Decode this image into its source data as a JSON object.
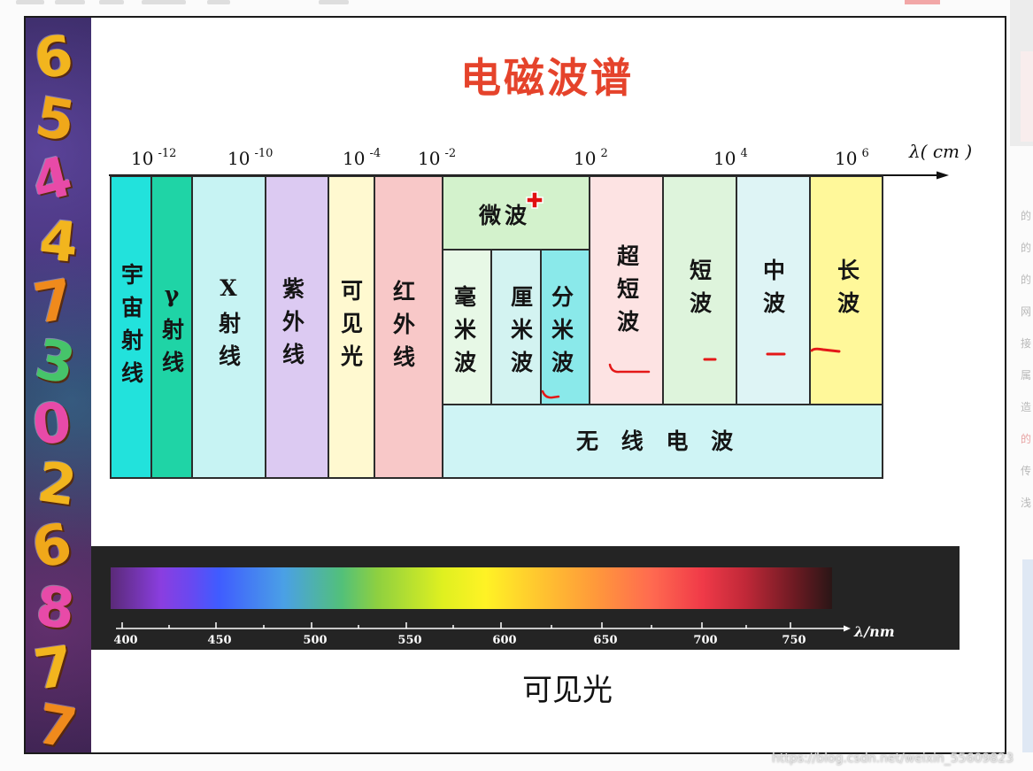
{
  "title": "电磁波谱",
  "colors": {
    "title": "#e5432b",
    "annotation": "#e41818",
    "cursor": "#e01010",
    "visible_bar": "#242424"
  },
  "axis": {
    "ticks": [
      {
        "base": "10",
        "exp": "-12"
      },
      {
        "base": "10",
        "exp": "-10"
      },
      {
        "base": "10",
        "exp": "-4"
      },
      {
        "base": "10",
        "exp": "-2"
      },
      {
        "base": "10",
        "exp": "2"
      },
      {
        "base": "10",
        "exp": "4"
      },
      {
        "base": "10",
        "exp": "6"
      }
    ],
    "unit_label": "λ( cm )"
  },
  "bands": [
    {
      "label": "宇宙射线",
      "color": "#22e2dc"
    },
    {
      "label": "γ射线",
      "color": "#1fd4a6"
    },
    {
      "label": "X射线",
      "color": "#c7f3f3"
    },
    {
      "label": "紫外线",
      "color": "#dccaf2"
    },
    {
      "label": "可见光",
      "color": "#fff9d0"
    },
    {
      "label": "红外线",
      "color": "#f8c8c8"
    }
  ],
  "microwave": {
    "label": "微波",
    "color": "#d3f2cc",
    "sub": [
      {
        "label": "毫米波",
        "color": "#e7f8e6"
      },
      {
        "label": "厘米波",
        "color": "#d3f3f1"
      },
      {
        "label": "分米波",
        "color": "#8ae9ea"
      }
    ]
  },
  "radio_bands": [
    {
      "label": "超短波",
      "color": "#fde3e3"
    },
    {
      "label": "短波",
      "color": "#def4dc"
    },
    {
      "label": "中波",
      "color": "#def4f5"
    },
    {
      "label": "长波",
      "color": "#fff89a"
    }
  ],
  "radio": {
    "label": "无 线 电 波",
    "color": "#cff4f5"
  },
  "visible_light": {
    "tick_labels": [
      "400",
      "450",
      "500",
      "550",
      "600",
      "650",
      "700",
      "750"
    ],
    "unit_label": "λ/nm",
    "caption": "可见光"
  },
  "decor_digits": [
    "6",
    "5",
    "4",
    "4",
    "7",
    "3",
    "0",
    "2",
    "6",
    "8",
    "7",
    "7"
  ],
  "side_text": [
    "的",
    "的",
    "的",
    "网",
    "接",
    "属",
    "造",
    "的",
    "传",
    "浅"
  ],
  "watermark": "https://blog.csdn.net/weixin_55609823"
}
